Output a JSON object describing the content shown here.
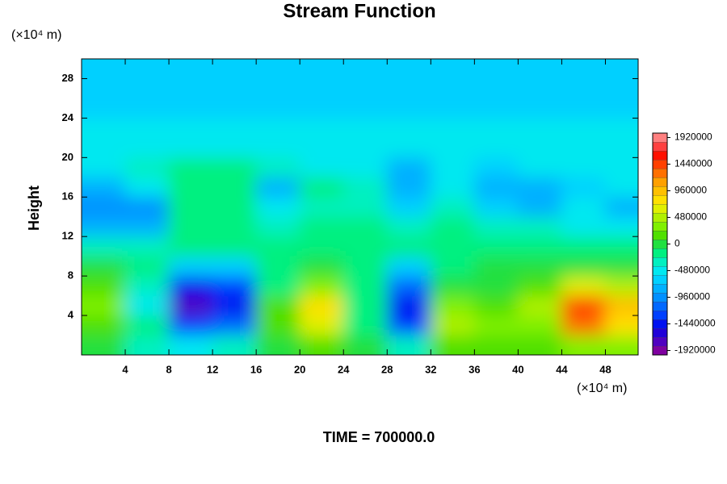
{
  "chart_data": {
    "type": "contour",
    "title": "Stream Function",
    "y_unit_label": "(×10⁴ m)",
    "x_unit_label": "(×10⁴ m)",
    "ylabel": "Height",
    "annotation": "TIME = 700000.0",
    "xlim": [
      0,
      51
    ],
    "ylim": [
      0,
      30
    ],
    "xticks": [
      4,
      8,
      12,
      16,
      20,
      24,
      28,
      32,
      36,
      40,
      44,
      48
    ],
    "yticks": [
      4,
      8,
      12,
      16,
      20,
      24,
      28
    ],
    "x": [
      2,
      6,
      10,
      14,
      18,
      22,
      26,
      30,
      34,
      38,
      42,
      46,
      50
    ],
    "y": [
      1,
      3,
      5,
      7,
      9,
      11,
      13,
      15,
      17,
      19,
      21,
      23,
      25,
      27,
      29
    ],
    "z": [
      [
        0,
        -400000,
        -560000,
        -400000,
        0,
        160000,
        -80000,
        -400000,
        80000,
        80000,
        80000,
        320000,
        240000
      ],
      [
        160000,
        -240000,
        -1280000,
        -1120000,
        80000,
        560000,
        -160000,
        -1280000,
        400000,
        240000,
        320000,
        1200000,
        720000
      ],
      [
        240000,
        -480000,
        -1760000,
        -1440000,
        80000,
        720000,
        -240000,
        -1440000,
        320000,
        160000,
        400000,
        1360000,
        880000
      ],
      [
        160000,
        -320000,
        -1440000,
        -1280000,
        -160000,
        240000,
        -240000,
        -1120000,
        -80000,
        0,
        80000,
        560000,
        480000
      ],
      [
        -80000,
        -240000,
        -720000,
        -640000,
        -160000,
        -80000,
        -240000,
        -720000,
        -160000,
        -80000,
        -80000,
        -80000,
        0
      ],
      [
        -320000,
        -320000,
        -240000,
        -160000,
        -160000,
        -160000,
        -160000,
        -240000,
        -160000,
        -160000,
        -240000,
        -240000,
        -240000
      ],
      [
        -800000,
        -880000,
        -160000,
        -160000,
        -320000,
        -240000,
        -240000,
        -320000,
        -240000,
        -320000,
        -400000,
        -480000,
        -480000
      ],
      [
        -1040000,
        -960000,
        -240000,
        -160000,
        -560000,
        -320000,
        -320000,
        -640000,
        -400000,
        -640000,
        -880000,
        -560000,
        -800000
      ],
      [
        -880000,
        -480000,
        -160000,
        -160000,
        -800000,
        -240000,
        -400000,
        -880000,
        -480000,
        -880000,
        -800000,
        -720000,
        -480000
      ],
      [
        -560000,
        -400000,
        -160000,
        -160000,
        -400000,
        -480000,
        -560000,
        -800000,
        -480000,
        -720000,
        -480000,
        -560000,
        -480000
      ],
      [
        -560000,
        -480000,
        -480000,
        -480000,
        -480000,
        -480000,
        -480000,
        -480000,
        -480000,
        -480000,
        -480000,
        -480000,
        -480000
      ],
      [
        -560000,
        -560000,
        -560000,
        -560000,
        -560000,
        -560000,
        -560000,
        -560000,
        -560000,
        -560000,
        -560000,
        -560000,
        -560000
      ],
      [
        -640000,
        -640000,
        -640000,
        -640000,
        -640000,
        -640000,
        -640000,
        -640000,
        -640000,
        -640000,
        -640000,
        -640000,
        -640000
      ],
      [
        -720000,
        -720000,
        -720000,
        -720000,
        -720000,
        -720000,
        -720000,
        -720000,
        -720000,
        -720000,
        -720000,
        -720000,
        -720000
      ],
      [
        -720000,
        -720000,
        -720000,
        -720000,
        -720000,
        -720000,
        -720000,
        -720000,
        -720000,
        -720000,
        -720000,
        -720000,
        -720000
      ]
    ],
    "colorbar": {
      "lim": [
        -2000000,
        2000000
      ],
      "ticks": [
        -1920000,
        -1440000,
        -960000,
        -480000,
        0,
        480000,
        960000,
        1440000,
        1920000
      ],
      "colors": [
        "#7f00a0",
        "#5000c0",
        "#2000d8",
        "#0010f0",
        "#0040ff",
        "#0068ff",
        "#0090ff",
        "#00b0ff",
        "#00d0ff",
        "#00e8f0",
        "#00f0c0",
        "#00f080",
        "#20e040",
        "#50e000",
        "#80f000",
        "#b0f000",
        "#e0f000",
        "#ffe000",
        "#ffc000",
        "#ffa000",
        "#ff7000",
        "#ff4000",
        "#ff1000",
        "#ff4040",
        "#ff8080"
      ]
    }
  }
}
